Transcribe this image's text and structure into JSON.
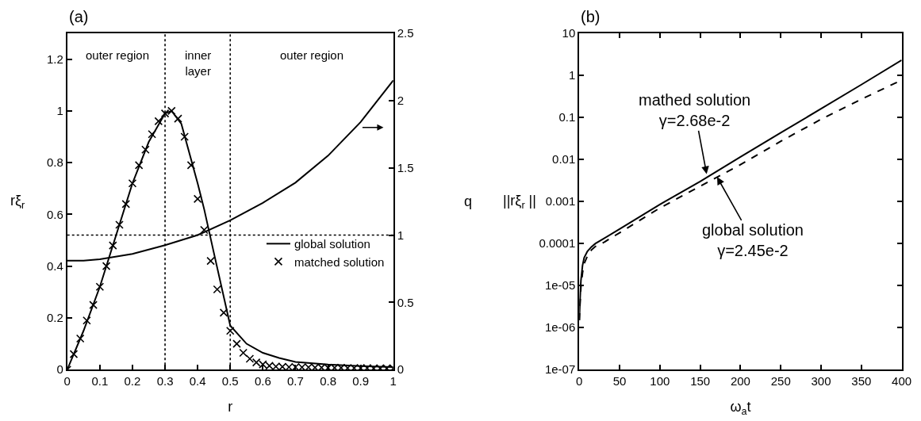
{
  "chart_data": [
    {
      "type": "line",
      "title": "(a)",
      "xlabel": "r",
      "ylabel": "rξ$_{r}$",
      "y2label": "q",
      "xlim": [
        0,
        1
      ],
      "xticks": [
        0,
        0.1,
        0.2,
        0.3,
        0.4,
        0.5,
        0.6,
        0.7,
        0.8,
        0.9,
        1
      ],
      "ylim": [
        0,
        1.3
      ],
      "yticks": [
        0,
        0.2,
        0.4,
        0.6,
        0.8,
        1,
        1.2
      ],
      "y2lim": [
        0,
        2.5
      ],
      "y2ticks": [
        0,
        0.5,
        1,
        1.5,
        2,
        2.5
      ],
      "x": [
        0,
        0.02,
        0.04,
        0.06,
        0.08,
        0.1,
        0.12,
        0.14,
        0.16,
        0.18,
        0.2,
        0.22,
        0.24,
        0.26,
        0.28,
        0.3,
        0.32,
        0.34,
        0.36,
        0.38,
        0.4,
        0.42,
        0.44,
        0.46,
        0.48,
        0.5,
        0.52,
        0.54,
        0.56,
        0.58,
        0.6,
        0.62,
        0.64,
        0.66,
        0.68,
        0.7,
        0.72,
        0.74,
        0.76,
        0.78,
        0.8,
        0.82,
        0.84,
        0.86,
        0.88,
        0.9,
        0.92,
        0.94,
        0.96,
        0.98,
        1
      ],
      "series": [
        {
          "name": "global solution",
          "color": "#000000",
          "type": "line",
          "marker": "none",
          "line_style": "solid",
          "x": [
            0,
            0.05,
            0.1,
            0.15,
            0.2,
            0.25,
            0.3,
            0.32,
            0.35,
            0.4,
            0.42,
            0.45,
            0.5,
            0.55,
            0.6,
            0.65,
            0.7,
            0.8,
            0.9,
            1
          ],
          "values": [
            0,
            0.15,
            0.32,
            0.52,
            0.72,
            0.88,
            0.99,
            1,
            0.95,
            0.72,
            0.62,
            0.45,
            0.17,
            0.1,
            0.065,
            0.045,
            0.03,
            0.02,
            0.014,
            0.01
          ]
        },
        {
          "name": "matched solution",
          "color": "#000000",
          "type": "scatter",
          "marker": "cross",
          "values": [
            0,
            0.06,
            0.12,
            0.19,
            0.25,
            0.32,
            0.4,
            0.48,
            0.56,
            0.64,
            0.72,
            0.79,
            0.85,
            0.91,
            0.96,
            0.99,
            1,
            0.97,
            0.9,
            0.79,
            0.66,
            0.54,
            0.42,
            0.31,
            0.22,
            0.15,
            0.1,
            0.065,
            0.042,
            0.028,
            0.02,
            0.015,
            0.012,
            0.011,
            0.01,
            0.01,
            0.009,
            0.009,
            0.008,
            0.008,
            0.007,
            0.007,
            0.007,
            0.006,
            0.006,
            0.006,
            0.006,
            0.005,
            0.005,
            0.005,
            0.005
          ]
        },
        {
          "color": "#000000",
          "type": "line",
          "marker": "none",
          "line_style": "solid",
          "axis": "y2",
          "x": [
            0,
            0.05,
            0.1,
            0.2,
            0.3,
            0.4,
            0.5,
            0.6,
            0.7,
            0.8,
            0.9,
            1
          ],
          "values": [
            0.81,
            0.81,
            0.82,
            0.86,
            0.925,
            1.0,
            1.11,
            1.24,
            1.39,
            1.59,
            1.84,
            2.15
          ]
        }
      ],
      "ref_lines": [
        {
          "axis": "x",
          "value": 0.3,
          "color": "#000000",
          "line_style": "dotted"
        },
        {
          "axis": "x",
          "value": 0.5,
          "color": "#000000",
          "line_style": "dotted"
        },
        {
          "axis": "y2",
          "value": 1,
          "color": "#000000",
          "line_style": "dotted"
        }
      ],
      "annotations": [
        "outer region",
        "inner\nlayer",
        "outer region"
      ],
      "legend": "right"
    },
    {
      "type": "line",
      "title": "(b)",
      "xlabel": "ω$_{a}$t",
      "ylabel": "||rξ$_{r}$ ||",
      "log": "y",
      "xlim": [
        0,
        400
      ],
      "xticks": [
        0,
        50,
        100,
        150,
        200,
        250,
        300,
        350,
        400
      ],
      "ylim": [
        1e-07,
        10
      ],
      "yticks": [
        {
          "value": 1e-07,
          "label": "1e-07"
        },
        {
          "value": 1e-06,
          "label": "1e-06"
        },
        {
          "value": 1e-05,
          "label": "1e-05"
        },
        0.0001,
        0.001,
        0.01,
        0.1,
        1,
        10
      ],
      "x": [
        0,
        1,
        2,
        4,
        6,
        10,
        15,
        20,
        30,
        50,
        100,
        150,
        200,
        250,
        300,
        350,
        400
      ],
      "series": [
        {
          "color": "#000000",
          "line_style": "solid",
          "values": [
            1.5e-06,
            5e-06,
            1.3e-05,
            3e-05,
            4.6e-05,
            6.5e-05,
            8.3e-05,
            0.0001,
            0.00013,
            0.00022,
            0.00085,
            0.003,
            0.0115,
            0.043,
            0.16,
            0.6,
            2.3
          ]
        },
        {
          "color": "#000000",
          "line_style": "dashed",
          "values": [
            1.5e-06,
            4e-06,
            9e-06,
            2e-05,
            3.3e-05,
            5e-05,
            7e-05,
            8.5e-05,
            0.000105,
            0.00018,
            0.0007,
            0.0023,
            0.0075,
            0.027,
            0.09,
            0.27,
            0.77
          ]
        }
      ],
      "annotations": [
        {
          "text": "mathed solution\nγ=2.68e-2",
          "x": 158,
          "y": 0.0045
        },
        {
          "text": "global solution\nγ=2.45e-2",
          "x": 171,
          "y": 0.0038
        }
      ],
      "legend": false
    }
  ]
}
